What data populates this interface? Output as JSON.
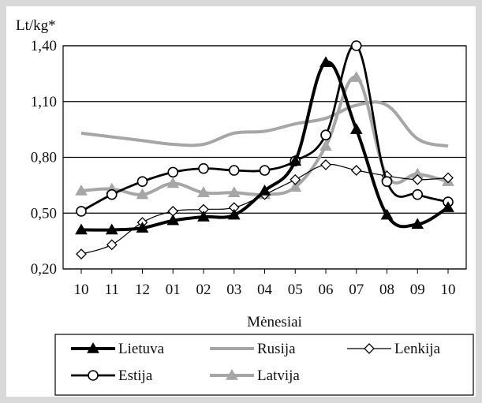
{
  "chart_data": {
    "type": "line",
    "ylabel": "Lt/kg*",
    "xlabel": "Mėnesiai",
    "categories": [
      "10",
      "11",
      "12",
      "01",
      "02",
      "03",
      "04",
      "05",
      "06",
      "07",
      "08",
      "09",
      "10"
    ],
    "y_ticks": [
      "1,40",
      "1,10",
      "0,80",
      "0,50",
      "0,20"
    ],
    "y_tick_values": [
      1.4,
      1.1,
      0.8,
      0.5,
      0.2
    ],
    "ylim": [
      0.2,
      1.4
    ],
    "grid": "horizontal",
    "legend_position": "bottom",
    "series": [
      {
        "name": "Lietuva",
        "color": "#000000",
        "width": 4,
        "marker": "triangle-filled",
        "values": [
          0.41,
          0.41,
          0.42,
          0.46,
          0.48,
          0.49,
          0.62,
          0.78,
          1.31,
          0.95,
          0.49,
          0.44,
          0.53
        ]
      },
      {
        "name": "Rusija",
        "color": "#a6a6a6",
        "width": 4,
        "marker": "none",
        "values": [
          0.93,
          0.91,
          0.89,
          0.87,
          0.87,
          0.93,
          0.94,
          0.98,
          1.01,
          1.08,
          1.08,
          0.9,
          0.86
        ]
      },
      {
        "name": "Lenkija",
        "color": "#000000",
        "width": 1.2,
        "marker": "diamond-open",
        "values": [
          0.28,
          0.33,
          0.45,
          0.51,
          0.52,
          0.53,
          0.6,
          0.68,
          0.76,
          0.73,
          0.7,
          0.68,
          0.69
        ]
      },
      {
        "name": "Estija",
        "color": "#000000",
        "width": 2.8,
        "marker": "circle-open",
        "values": [
          0.51,
          0.6,
          0.67,
          0.72,
          0.74,
          0.73,
          0.73,
          0.78,
          0.92,
          1.4,
          0.67,
          0.6,
          0.56
        ]
      },
      {
        "name": "Latvija",
        "color": "#a6a6a6",
        "width": 4,
        "marker": "triangle-filled",
        "values": [
          0.62,
          0.63,
          0.6,
          0.66,
          0.61,
          0.61,
          0.6,
          0.64,
          0.86,
          1.23,
          0.7,
          0.71,
          0.67
        ]
      }
    ]
  }
}
